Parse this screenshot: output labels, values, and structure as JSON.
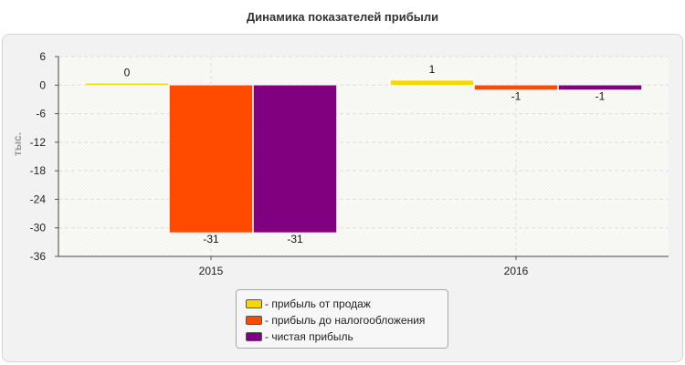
{
  "title": "Динамика показателей прибыли",
  "chart_data": {
    "type": "bar",
    "title": "Динамика показателей прибыли",
    "xlabel": "",
    "ylabel": "тыс.",
    "categories": [
      "2015",
      "2016"
    ],
    "series": [
      {
        "name": "прибыль от продаж",
        "values": [
          0,
          1
        ],
        "color": "#f5d800"
      },
      {
        "name": "прибыль до налогообложения",
        "values": [
          -31,
          -1
        ],
        "color": "#ff4b00"
      },
      {
        "name": "чистая прибыль",
        "values": [
          -31,
          -1
        ],
        "color": "#800080"
      }
    ],
    "ylim": [
      -36,
      6
    ],
    "yticks": [
      6,
      0,
      -6,
      -12,
      -18,
      -24,
      -30,
      -36
    ],
    "grid": true,
    "legend_position": "bottom-center"
  },
  "legend": {
    "prefix": "- ",
    "items": [
      "прибыль от продаж",
      "прибыль до налогообложения",
      "чистая прибыль"
    ]
  }
}
